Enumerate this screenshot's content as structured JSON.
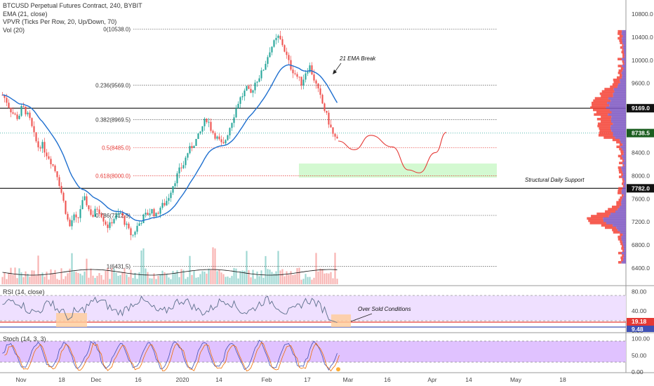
{
  "legend": {
    "symbol": "BTCUSD Perpetual Futures Contract, 240, BYBIT",
    "ema": "EMA (21, close)",
    "vpvr": "VPVR (Ticks Per Row, 20, Up/Down, 70)",
    "vol": "Vol (20)"
  },
  "rsi_label": "RSI (14, close)",
  "stoch_label": "Stoch (14, 3, 3)",
  "colors": {
    "up": "#26a69a",
    "down": "#ef5350",
    "ema": "#1e6fcf",
    "vpvr_up": "#7e57c2",
    "vpvr_down": "#f44336",
    "rsi_band": "#e9d6ff",
    "stoch_band": "#d6a6ff",
    "forecast": "#e53935",
    "zone": "#c8f7c5",
    "oversold": "#ffcc99"
  },
  "chart_data": {
    "type": "candlestick",
    "price_axis": [
      "10800.0",
      "10400.0",
      "10000.0",
      "9600.0",
      "9200.0",
      "8400.0",
      "8000.0",
      "7600.0",
      "7200.0",
      "6800.0",
      "6400.0"
    ],
    "price_ticks": [
      10800,
      10400,
      10000,
      9600,
      9200,
      8400,
      8000,
      7600,
      7200,
      6800,
      6400
    ],
    "ylim": [
      6250,
      11000
    ],
    "time_axis": [
      "Nov",
      "18",
      "Dec",
      "16",
      "2020",
      "14",
      "Feb",
      "17",
      "Mar",
      "16",
      "Apr",
      "14",
      "May",
      "18"
    ],
    "fib_levels": [
      {
        "label": "0(10538.0)",
        "price": 10538,
        "color": "#333"
      },
      {
        "label": "0.236(9569.0)",
        "price": 9569,
        "color": "#333"
      },
      {
        "label": "0.382(8969.5)",
        "price": 8969.5,
        "color": "#333"
      },
      {
        "label": "0.5(8485.0)",
        "price": 8485,
        "color": "red"
      },
      {
        "label": "0.618(8000.0)",
        "price": 8000,
        "color": "red"
      },
      {
        "label": "0.786(7312.5)",
        "price": 7312.5,
        "color": "#333"
      },
      {
        "label": "1(6431.5)",
        "price": 6431.5,
        "color": "#333"
      }
    ],
    "horizontal_levels": [
      {
        "label": "9169.0",
        "price": 9169
      },
      {
        "label": "7782.0",
        "price": 7782
      }
    ],
    "last_price": {
      "label": "8738.5",
      "price": 8738.5
    },
    "annotations": {
      "ema_break": "21 EMA Break",
      "structural_support": "Structural Daily Support",
      "oversold": "Over Sold Conditions"
    },
    "rsi_axis": [
      "80.00",
      "40.00",
      "0.00"
    ],
    "rsi_ticks": [
      80,
      40,
      0
    ],
    "rsi_last": "19.18",
    "rsi_second": "9.48",
    "stoch_axis": [
      "100.00",
      "50.00",
      "0.00"
    ],
    "stoch_ticks": [
      100,
      50,
      0
    ],
    "close_path": [
      9400,
      9300,
      9150,
      9050,
      9000,
      9200,
      9100,
      8950,
      8700,
      8500,
      8550,
      8400,
      8300,
      8150,
      8000,
      7700,
      7400,
      7100,
      7300,
      7200,
      7500,
      7600,
      7400,
      7300,
      7450,
      7350,
      7200,
      7100,
      7250,
      7300,
      7350,
      7200,
      7050,
      6950,
      7100,
      7200,
      7300,
      7350,
      7400,
      7300,
      7450,
      7500,
      7600,
      7800,
      7950,
      8100,
      8200,
      8400,
      8500,
      8600,
      8700,
      8900,
      9000,
      8800,
      8700,
      8600,
      8500,
      8700,
      8900,
      9100,
      9300,
      9400,
      9500,
      9400,
      9600,
      9700,
      9800,
      10000,
      10200,
      10300,
      10400,
      10300,
      10100,
      9900,
      9800,
      9700,
      9600,
      9800,
      9900,
      9700,
      9500,
      9300,
      9100,
      8900,
      8700,
      8600
    ],
    "forecast_points": [
      [
        8600,
        0
      ],
      [
        8450,
        0.15
      ],
      [
        8700,
        0.3
      ],
      [
        8500,
        0.5
      ],
      [
        8100,
        0.65
      ],
      [
        8050,
        0.75
      ],
      [
        8400,
        0.9
      ],
      [
        8750,
        1
      ]
    ]
  }
}
